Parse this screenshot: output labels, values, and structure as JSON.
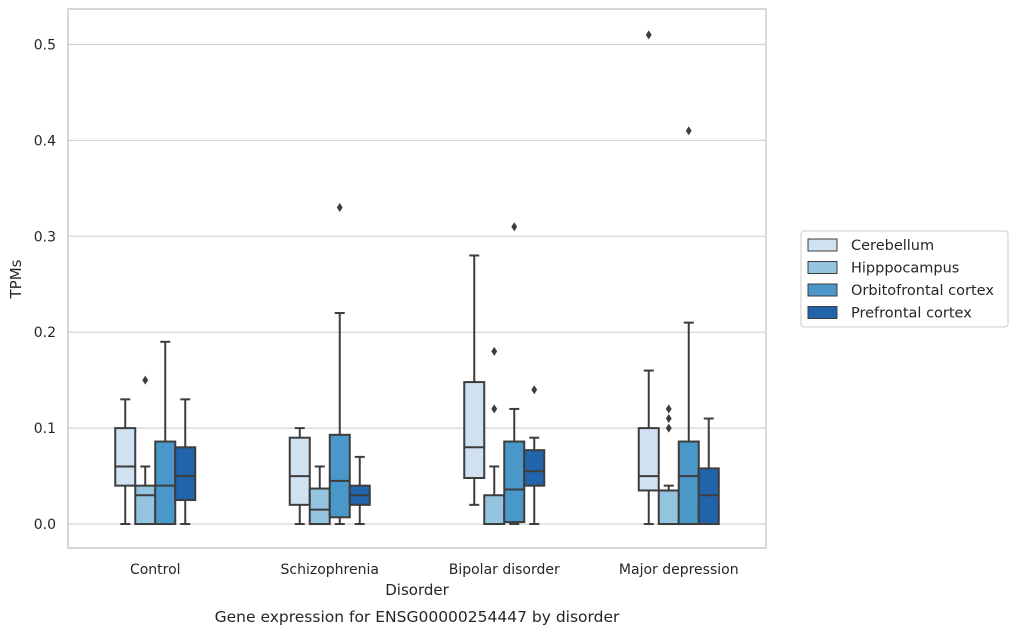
{
  "chart_data": {
    "type": "boxplot",
    "caption": "Gene expression for ENSG00000254447 by disorder",
    "xlabel": "Disorder",
    "ylabel": "TPMs",
    "ylim": [
      -0.025,
      0.537
    ],
    "yticks": [
      0.0,
      0.1,
      0.2,
      0.3,
      0.4,
      0.5
    ],
    "ytick_labels": [
      "0.0",
      "0.1",
      "0.2",
      "0.3",
      "0.4",
      "0.5"
    ],
    "grid": true,
    "legend_position": "right",
    "categories": [
      "Control",
      "Schizophrenia",
      "Bipolar disorder",
      "Major depression"
    ],
    "series": [
      {
        "name": "Cerebellum",
        "color": "#d0e1f2",
        "boxes": [
          {
            "whislo": 0.0,
            "q1": 0.04,
            "med": 0.06,
            "q3": 0.1,
            "whishi": 0.13,
            "fliers": []
          },
          {
            "whislo": 0.0,
            "q1": 0.02,
            "med": 0.05,
            "q3": 0.09,
            "whishi": 0.1,
            "fliers": []
          },
          {
            "whislo": 0.02,
            "q1": 0.048,
            "med": 0.08,
            "q3": 0.148,
            "whishi": 0.28,
            "fliers": []
          },
          {
            "whislo": 0.0,
            "q1": 0.035,
            "med": 0.05,
            "q3": 0.1,
            "whishi": 0.16,
            "fliers": [
              0.51
            ]
          }
        ]
      },
      {
        "name": "Hipppocampus",
        "color": "#94c4df",
        "boxes": [
          {
            "whislo": 0.0,
            "q1": 0.0,
            "med": 0.03,
            "q3": 0.04,
            "whishi": 0.06,
            "fliers": [
              0.15
            ]
          },
          {
            "whislo": 0.0,
            "q1": 0.0,
            "med": 0.015,
            "q3": 0.037,
            "whishi": 0.06,
            "fliers": []
          },
          {
            "whislo": 0.0,
            "q1": 0.0,
            "med": 0.0,
            "q3": 0.03,
            "whishi": 0.06,
            "fliers": [
              0.12,
              0.18
            ]
          },
          {
            "whislo": 0.0,
            "q1": 0.0,
            "med": 0.035,
            "q3": 0.035,
            "whishi": 0.04,
            "fliers": [
              0.1,
              0.11,
              0.12
            ]
          }
        ]
      },
      {
        "name": "Orbitofrontal cortex",
        "color": "#4a98c9",
        "boxes": [
          {
            "whislo": 0.0,
            "q1": 0.0,
            "med": 0.04,
            "q3": 0.086,
            "whishi": 0.19,
            "fliers": []
          },
          {
            "whislo": 0.0,
            "q1": 0.007,
            "med": 0.045,
            "q3": 0.093,
            "whishi": 0.22,
            "fliers": [
              0.33
            ]
          },
          {
            "whislo": 0.0,
            "q1": 0.002,
            "med": 0.036,
            "q3": 0.086,
            "whishi": 0.12,
            "fliers": [
              0.31
            ]
          },
          {
            "whislo": 0.0,
            "q1": 0.0,
            "med": 0.05,
            "q3": 0.086,
            "whishi": 0.21,
            "fliers": [
              0.41
            ]
          }
        ]
      },
      {
        "name": "Prefrontal cortex",
        "color": "#2164ab",
        "boxes": [
          {
            "whislo": 0.0,
            "q1": 0.025,
            "med": 0.05,
            "q3": 0.08,
            "whishi": 0.13,
            "fliers": []
          },
          {
            "whislo": 0.0,
            "q1": 0.02,
            "med": 0.03,
            "q3": 0.04,
            "whishi": 0.07,
            "fliers": []
          },
          {
            "whislo": 0.0,
            "q1": 0.04,
            "med": 0.055,
            "q3": 0.077,
            "whishi": 0.09,
            "fliers": [
              0.14
            ]
          },
          {
            "whislo": 0.0,
            "q1": 0.0,
            "med": 0.03,
            "q3": 0.058,
            "whishi": 0.11,
            "fliers": []
          }
        ]
      }
    ]
  }
}
